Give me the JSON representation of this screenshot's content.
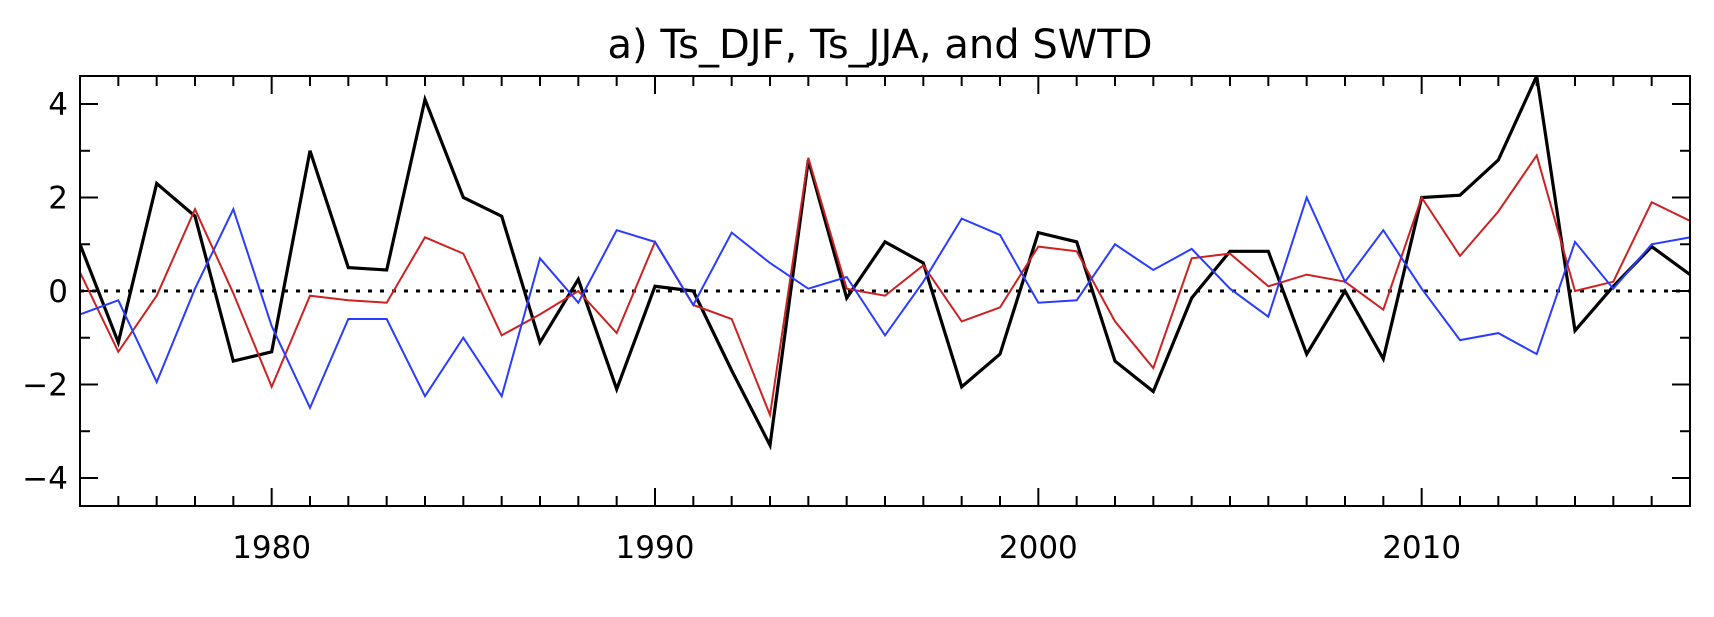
{
  "chart_data": {
    "type": "line",
    "title": "a) Ts_DJF, Ts_JJA, and SWTD",
    "xlabel": "",
    "ylabel": "",
    "xlim": [
      1975,
      2017
    ],
    "ylim": [
      -4.6,
      4.6
    ],
    "xticks_major": [
      1980,
      1990,
      2000,
      2010
    ],
    "xtick_labels": [
      "1980",
      "1990",
      "2000",
      "2010"
    ],
    "yticks_major": [
      -4,
      -2,
      0,
      2,
      4
    ],
    "ytick_labels": [
      "−4",
      "−2",
      "0",
      "2",
      "4"
    ],
    "reference_line": {
      "y": 0,
      "style": "dotted"
    },
    "grid": false,
    "x": [
      1975,
      1976,
      1977,
      1978,
      1979,
      1980,
      1981,
      1982,
      1983,
      1984,
      1985,
      1986,
      1987,
      1988,
      1989,
      1990,
      1991,
      1992,
      1993,
      1994,
      1995,
      1996,
      1997,
      1998,
      1999,
      2000,
      2001,
      2002,
      2003,
      2004,
      2005,
      2006,
      2007,
      2008,
      2009,
      2010,
      2011,
      2012,
      2013,
      2014,
      2015,
      2016,
      2017
    ],
    "series": [
      {
        "color": "#000000",
        "values": [
          1.0,
          -1.1,
          2.3,
          1.6,
          -1.5,
          -1.3,
          3.0,
          0.5,
          0.45,
          4.1,
          2.0,
          1.6,
          -1.1,
          0.25,
          -2.1,
          0.1,
          0.0,
          -1.7,
          -3.3,
          2.8,
          -0.15,
          1.05,
          0.6,
          -2.05,
          -1.35,
          1.25,
          1.05,
          -1.5,
          -2.15,
          -0.15,
          0.85,
          0.85,
          -1.35,
          0.0,
          -1.45,
          2.0,
          2.05,
          2.8,
          4.6,
          -0.85,
          0.1,
          0.95,
          0.35
        ]
      },
      {
        "color": "#cc2222",
        "values": [
          0.4,
          -1.3,
          -0.1,
          1.75,
          -0.05,
          -2.05,
          -0.1,
          -0.2,
          -0.25,
          1.15,
          0.8,
          -0.95,
          -0.5,
          0.0,
          -0.9,
          1.05,
          -0.3,
          -0.6,
          -2.65,
          2.85,
          0.05,
          -0.1,
          0.55,
          -0.65,
          -0.35,
          0.95,
          0.85,
          -0.65,
          -1.65,
          0.7,
          0.8,
          0.1,
          0.35,
          0.2,
          -0.4,
          2.0,
          0.75,
          1.7,
          2.9,
          0.0,
          0.2,
          1.9,
          1.5
        ]
      },
      {
        "color": "#2a3cff",
        "values": [
          -0.5,
          -0.2,
          -1.95,
          0.05,
          1.75,
          -0.75,
          -2.5,
          -0.6,
          -0.6,
          -2.25,
          -1.0,
          -2.25,
          0.7,
          -0.25,
          1.3,
          1.05,
          -0.3,
          1.25,
          0.6,
          0.05,
          0.3,
          -0.95,
          0.2,
          1.55,
          1.2,
          -0.25,
          -0.2,
          1.0,
          0.45,
          0.9,
          0.05,
          -0.55,
          2.0,
          0.2,
          1.3,
          0.05,
          -1.05,
          -0.9,
          -1.35,
          1.05,
          0.05,
          1.0,
          1.15
        ]
      }
    ]
  }
}
